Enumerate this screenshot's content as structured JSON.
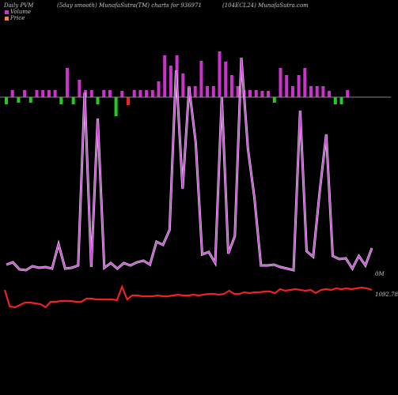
{
  "header": {
    "left": "Daily PVM",
    "mid1": "(5day smooth) MunafaSutra(TM) charts for 936971",
    "mid2": "(104ECL24) MunafaSutra.com"
  },
  "legend": {
    "volume": "Volume",
    "price": "Price"
  },
  "labels": {
    "volume_right": "0M",
    "price_right": "1092.78"
  },
  "colors": {
    "background": "#000000",
    "volume_up": "#cc33cc",
    "volume_down": "#22cc22",
    "volume_red": "#ee2222",
    "volume_line": "#cc44dd",
    "price_line": "#ee2222",
    "baseline": "#888888",
    "legend_volume": "#cc33cc",
    "legend_price": "#ee8833"
  },
  "chart_data": {
    "type": "bar",
    "description_series": "volume bars (top) plus smoothed volume line and price line (bottom); values relative",
    "bars": {
      "values": [
        -9,
        9,
        -7,
        9,
        -7,
        9,
        9,
        9,
        9,
        -9,
        37,
        -9,
        22,
        9,
        9,
        -9,
        9,
        9,
        -24,
        8,
        -10,
        9,
        9,
        9,
        9,
        20,
        53,
        40,
        53,
        30,
        14,
        14,
        46,
        14,
        14,
        58,
        45,
        28,
        14,
        9,
        9,
        9,
        8,
        8,
        -7,
        37,
        28,
        14,
        28,
        37,
        14,
        14,
        14,
        8,
        -9,
        -9,
        9
      ],
      "red": [
        19,
        20,
        43
      ]
    },
    "volume_line": [
      40,
      43,
      34,
      33,
      38,
      36,
      37,
      35,
      66,
      35,
      36,
      39,
      258,
      37,
      225,
      36,
      42,
      35,
      42,
      39,
      43,
      45,
      40,
      69,
      65,
      84,
      286,
      136,
      264,
      195,
      53,
      56,
      42,
      252,
      54,
      76,
      302,
      187,
      125,
      39,
      39,
      40,
      37,
      35,
      33,
      235,
      57,
      50,
      132,
      205,
      51,
      47,
      48,
      35,
      51,
      39,
      61
    ],
    "price_line": [
      25,
      4,
      3,
      6,
      9,
      9,
      8,
      7,
      3,
      10,
      10,
      11,
      11,
      11,
      10,
      10,
      14,
      14,
      13,
      13,
      13,
      13,
      12,
      29,
      13,
      18,
      18,
      17,
      17,
      17,
      18,
      17,
      17,
      18,
      19,
      18,
      18,
      19,
      18,
      19,
      20,
      20,
      19,
      20,
      24,
      20,
      20,
      22,
      21,
      22,
      22,
      23,
      23,
      21,
      26,
      24,
      25,
      26,
      25,
      24,
      25,
      21,
      25,
      26,
      25,
      27,
      26,
      27,
      26,
      27,
      28,
      27,
      25
    ]
  }
}
